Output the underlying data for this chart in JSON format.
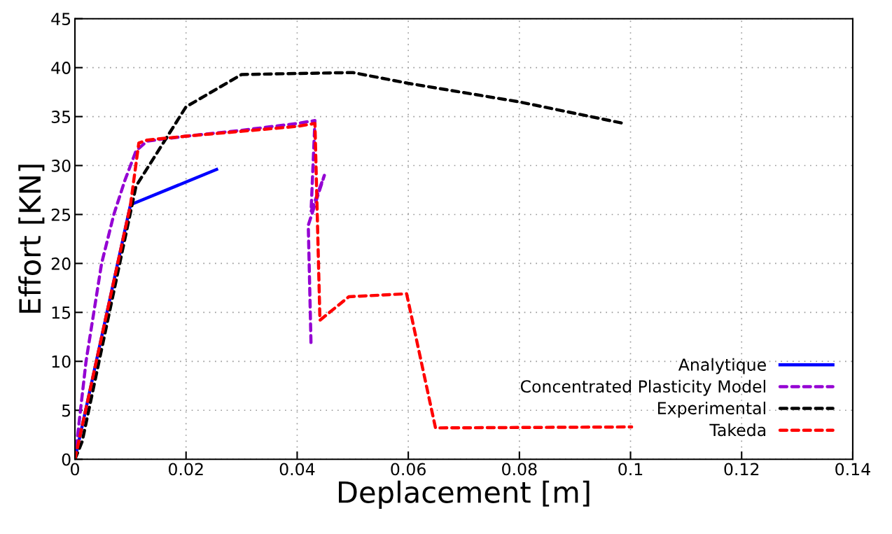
{
  "chart_data": {
    "type": "line",
    "xlabel": "Deplacement [m]",
    "ylabel": "Effort [KN]",
    "xlim": [
      0,
      0.14
    ],
    "xticks": [
      0,
      0.02,
      0.04,
      0.06,
      0.08,
      0.1,
      0.12,
      0.14
    ],
    "ylim": [
      0,
      45
    ],
    "yticks": [
      0,
      5,
      10,
      15,
      20,
      25,
      30,
      35,
      40,
      45
    ],
    "grid": true,
    "legend": "bottom right",
    "marker": "none",
    "series": [
      {
        "name": "Analytique",
        "color": "#0000ff",
        "line_style": "solid",
        "x": [
          0,
          0.01,
          0.0255
        ],
        "values": [
          0,
          26.0,
          29.6
        ]
      },
      {
        "name": "Concentrated Plasticity Model",
        "color": "#9400d3",
        "line_style": "dashed",
        "x": [
          0,
          0.002,
          0.0048,
          0.007,
          0.009,
          0.011,
          0.013,
          0.02,
          0.03,
          0.04,
          0.0432,
          0.0425,
          0.0449,
          0.042,
          0.0425
        ],
        "values": [
          0,
          10,
          20,
          25,
          28.5,
          31.5,
          32.5,
          33.0,
          33.6,
          34.3,
          34.6,
          25.3,
          29.0,
          23.9,
          11.6
        ]
      },
      {
        "name": "Experimental",
        "color": "#000000",
        "line_style": "dashed",
        "x": [
          0,
          0.0013,
          0.011,
          0.02,
          0.03,
          0.04,
          0.05,
          0.06,
          0.08,
          0.0988
        ],
        "values": [
          0,
          1.8,
          27.9,
          36.0,
          39.3,
          39.4,
          39.5,
          38.4,
          36.5,
          34.3
        ]
      },
      {
        "name": "Takeda",
        "color": "#ff0000",
        "line_style": "dashed",
        "x": [
          0,
          0.01,
          0.0115,
          0.013,
          0.02,
          0.03,
          0.04,
          0.0432,
          0.0441,
          0.0493,
          0.0597,
          0.0649,
          0.1002
        ],
        "values": [
          0,
          26.0,
          32.3,
          32.6,
          33.0,
          33.5,
          34.0,
          34.3,
          14.2,
          16.6,
          16.9,
          3.2,
          3.3
        ]
      }
    ]
  }
}
